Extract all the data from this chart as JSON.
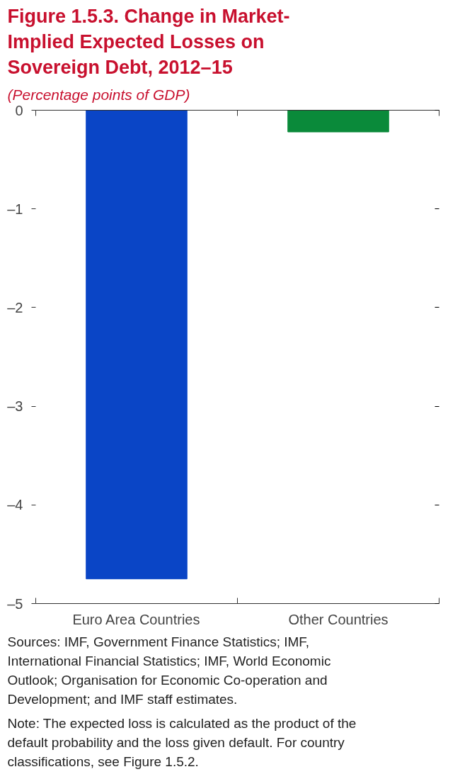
{
  "chart_data": {
    "type": "bar",
    "title": "Figure 1.5.3. Change in Market-Implied Expected Losses on Sovereign Debt, 2012–15",
    "subtitle": "(Percentage points of GDP)",
    "categories": [
      "Euro Area Countries",
      "Other Countries"
    ],
    "values": [
      -4.75,
      -0.22
    ],
    "colors": [
      "#0a45c6",
      "#0a8a3a"
    ],
    "ylim": [
      -5,
      0
    ],
    "yticks": [
      {
        "value": -5,
        "label": "–5"
      },
      {
        "value": -4,
        "label": "–4"
      },
      {
        "value": -3,
        "label": "–3"
      },
      {
        "value": -2,
        "label": "–2"
      },
      {
        "value": -1,
        "label": "–1"
      },
      0
    ],
    "grid": false,
    "annotations": [
      "Sources: IMF, Government Finance Statistics; IMF, International Financial Statistics; IMF, World Economic Outlook; Organisation for Economic Co-operation and Development; and IMF staff estimates.",
      "Note: The expected loss is calculated as the product of the default probability and the loss given default. For country classifications, see Figure 1.5.2."
    ]
  }
}
